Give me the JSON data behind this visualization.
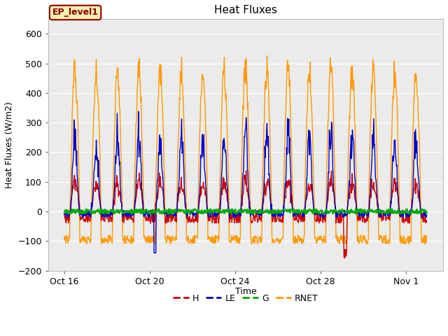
{
  "title": "Heat Fluxes",
  "ylabel": "Heat Fluxes (W/m2)",
  "xlabel": "Time",
  "ylim": [
    -200,
    650
  ],
  "yticks": [
    -200,
    -100,
    0,
    100,
    200,
    300,
    400,
    500,
    600
  ],
  "xtick_labels": [
    "Oct 16",
    "Oct 20",
    "Oct 24",
    "Oct 28",
    "Nov 1"
  ],
  "legend_label": "EP_level1",
  "colors": {
    "H": "#cc0000",
    "LE": "#0000cc",
    "G": "#00aa00",
    "RNET": "#ff9900"
  },
  "fig_facecolor": "#ffffff",
  "plot_facecolor": "#ebebeb",
  "n_days": 17,
  "points_per_day": 48
}
